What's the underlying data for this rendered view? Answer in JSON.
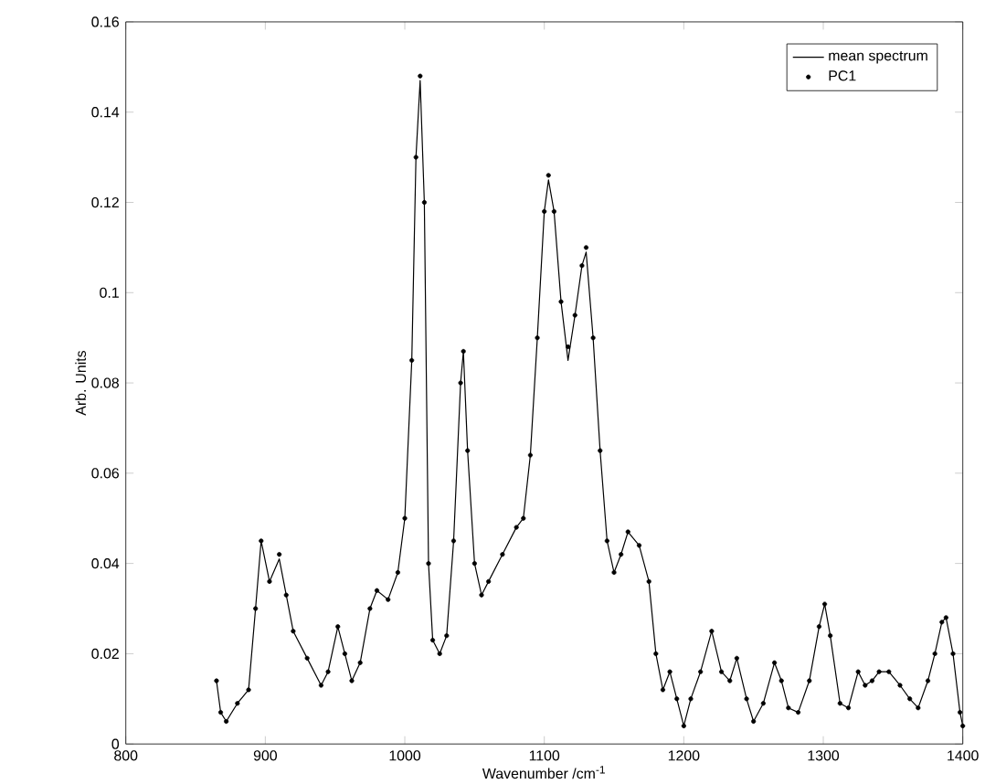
{
  "chart_data": {
    "type": "line",
    "xlabel": "Wavenumber /cm$^{-1}$",
    "ylabel": "Arb. Units",
    "x": [
      865,
      868,
      872,
      880,
      888,
      893,
      897,
      903,
      910,
      915,
      920,
      930,
      940,
      945,
      952,
      957,
      962,
      968,
      975,
      980,
      988,
      995,
      1000,
      1005,
      1008,
      1011,
      1014,
      1017,
      1020,
      1025,
      1030,
      1035,
      1040,
      1042,
      1045,
      1050,
      1055,
      1060,
      1070,
      1080,
      1085,
      1090,
      1095,
      1100,
      1103,
      1107,
      1112,
      1117,
      1122,
      1127,
      1130,
      1135,
      1140,
      1145,
      1150,
      1155,
      1160,
      1168,
      1175,
      1180,
      1185,
      1190,
      1195,
      1200,
      1205,
      1212,
      1220,
      1227,
      1233,
      1238,
      1245,
      1250,
      1257,
      1265,
      1270,
      1275,
      1282,
      1290,
      1297,
      1301,
      1305,
      1312,
      1318,
      1325,
      1330,
      1335,
      1340,
      1347,
      1355,
      1362,
      1368,
      1375,
      1380,
      1385,
      1388,
      1393,
      1398,
      1400
    ],
    "series": [
      {
        "name": "mean spectrum",
        "color": "#000000",
        "marker": "none",
        "line_style": "solid",
        "values": [
          0.014,
          0.007,
          0.005,
          0.009,
          0.012,
          0.03,
          0.045,
          0.036,
          0.041,
          0.033,
          0.025,
          0.019,
          0.013,
          0.016,
          0.026,
          0.02,
          0.014,
          0.018,
          0.03,
          0.034,
          0.032,
          0.038,
          0.05,
          0.085,
          0.13,
          0.147,
          0.12,
          0.04,
          0.023,
          0.02,
          0.024,
          0.045,
          0.08,
          0.087,
          0.065,
          0.04,
          0.033,
          0.036,
          0.042,
          0.048,
          0.05,
          0.064,
          0.09,
          0.118,
          0.125,
          0.118,
          0.098,
          0.085,
          0.095,
          0.106,
          0.109,
          0.09,
          0.065,
          0.045,
          0.038,
          0.042,
          0.047,
          0.044,
          0.036,
          0.02,
          0.012,
          0.016,
          0.01,
          0.004,
          0.01,
          0.016,
          0.025,
          0.016,
          0.014,
          0.019,
          0.01,
          0.005,
          0.009,
          0.018,
          0.014,
          0.008,
          0.007,
          0.014,
          0.026,
          0.031,
          0.024,
          0.009,
          0.008,
          0.016,
          0.013,
          0.014,
          0.016,
          0.016,
          0.013,
          0.01,
          0.008,
          0.014,
          0.02,
          0.027,
          0.028,
          0.02,
          0.007,
          0.004
        ]
      },
      {
        "name": "PC1",
        "type": "scatter",
        "color": "#000000",
        "marker": "circle",
        "values": [
          0.014,
          0.007,
          0.005,
          0.009,
          0.012,
          0.03,
          0.045,
          0.036,
          0.042,
          0.033,
          0.025,
          0.019,
          0.013,
          0.016,
          0.026,
          0.02,
          0.014,
          0.018,
          0.03,
          0.034,
          0.032,
          0.038,
          0.05,
          0.085,
          0.13,
          0.148,
          0.12,
          0.04,
          0.023,
          0.02,
          0.024,
          0.045,
          0.08,
          0.087,
          0.065,
          0.04,
          0.033,
          0.036,
          0.042,
          0.048,
          0.05,
          0.064,
          0.09,
          0.118,
          0.126,
          0.118,
          0.098,
          0.088,
          0.095,
          0.106,
          0.11,
          0.09,
          0.065,
          0.045,
          0.038,
          0.042,
          0.047,
          0.044,
          0.036,
          0.02,
          0.012,
          0.016,
          0.01,
          0.004,
          0.01,
          0.016,
          0.025,
          0.016,
          0.014,
          0.019,
          0.01,
          0.005,
          0.009,
          0.018,
          0.014,
          0.008,
          0.007,
          0.014,
          0.026,
          0.031,
          0.024,
          0.009,
          0.008,
          0.016,
          0.013,
          0.014,
          0.016,
          0.016,
          0.013,
          0.01,
          0.008,
          0.014,
          0.02,
          0.027,
          0.028,
          0.02,
          0.007,
          0.004
        ]
      }
    ],
    "xlim": [
      800,
      1400
    ],
    "ylim": [
      0,
      0.16
    ],
    "xticks": [
      800,
      900,
      1000,
      1100,
      1200,
      1300,
      1400
    ],
    "yticks": [
      0,
      0.02,
      0.04,
      0.06,
      0.08,
      0.1,
      0.12,
      0.14,
      0.16
    ],
    "grid": false,
    "legend": "top right"
  }
}
